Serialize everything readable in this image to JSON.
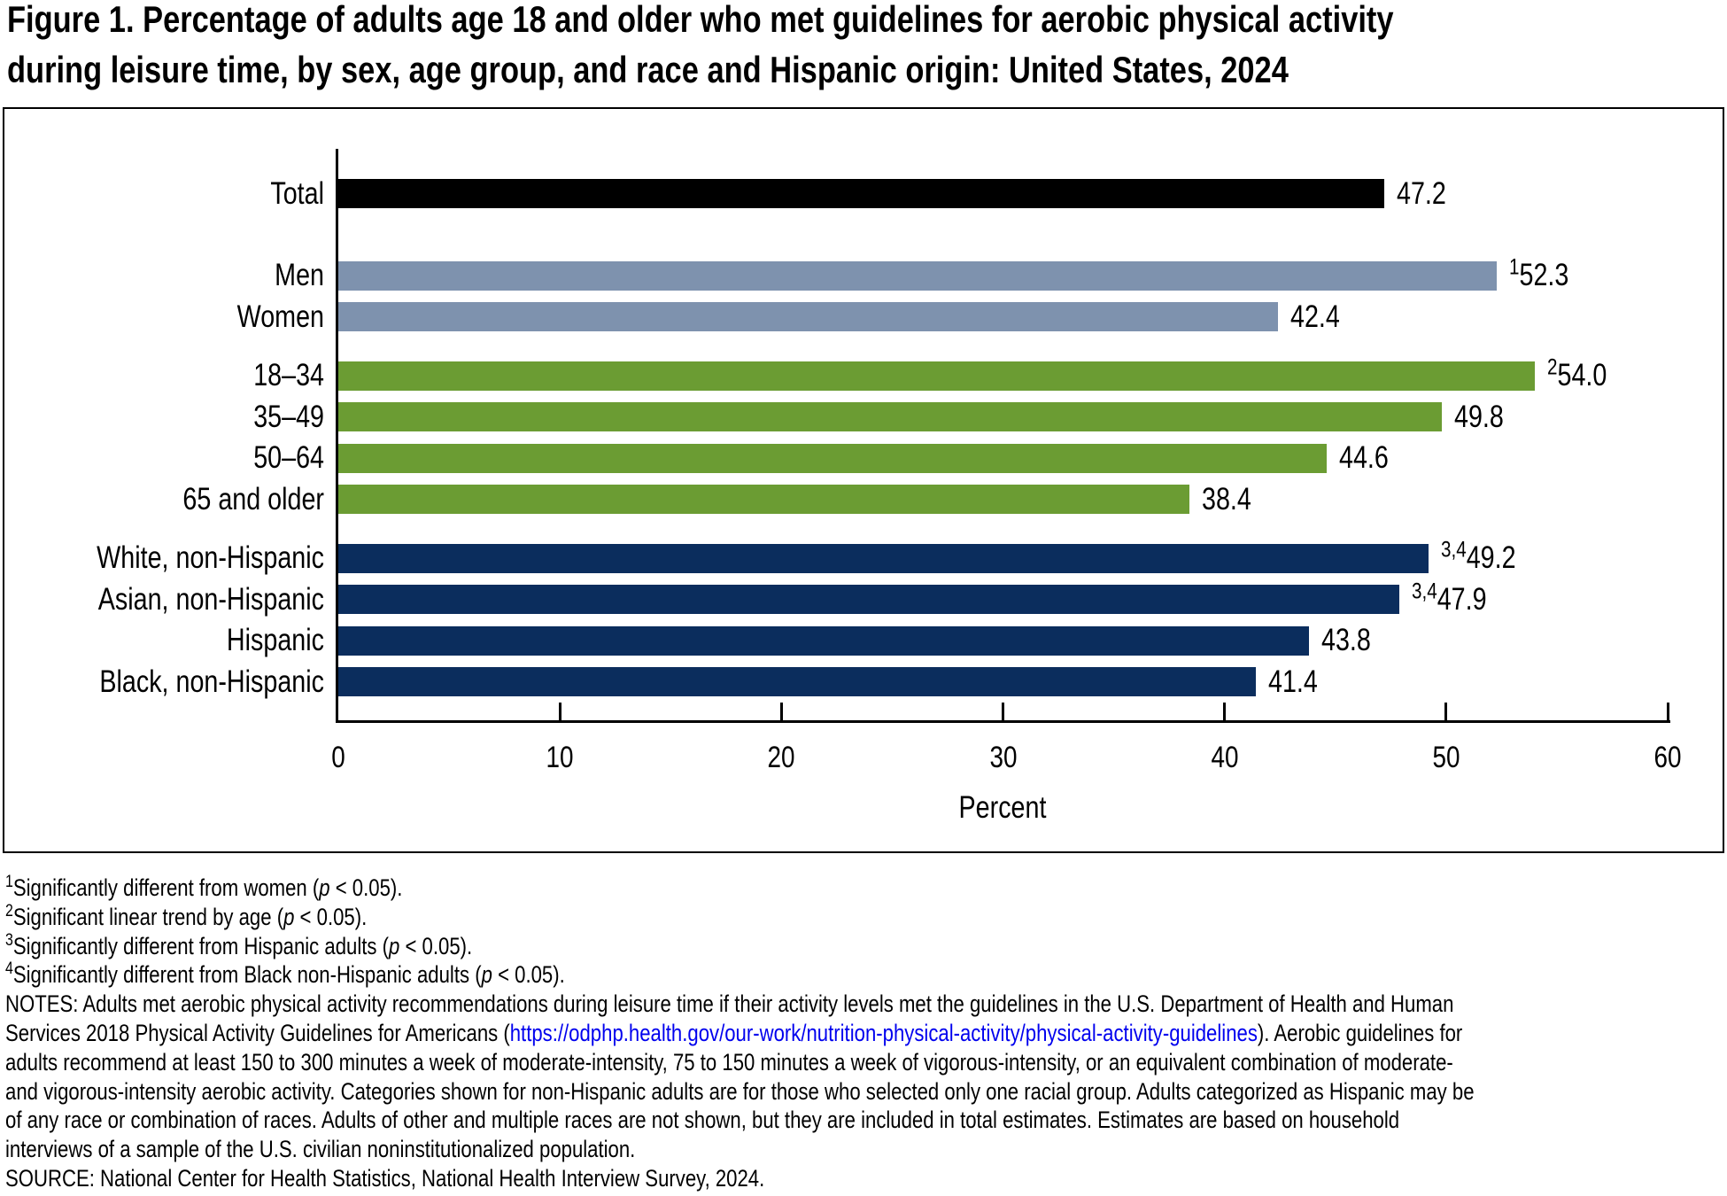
{
  "title": {
    "line1": "Figure 1. Percentage of adults age 18 and older who met guidelines for aerobic physical activity",
    "line2": "during leisure time, by sex, age group, and race and Hispanic origin: United States, 2024"
  },
  "chart_data": {
    "type": "bar",
    "orientation": "horizontal",
    "xlabel": "Percent",
    "xlim": [
      0,
      60
    ],
    "xticks": [
      0,
      10,
      20,
      30,
      40,
      50,
      60
    ],
    "grid": false,
    "categories": [
      "Total",
      "Men",
      "Women",
      "18–34",
      "35–49",
      "50–64",
      "65 and older",
      "White, non-Hispanic",
      "Asian, non-Hispanic",
      "Hispanic",
      "Black, non-Hispanic"
    ],
    "values": [
      47.2,
      52.3,
      42.4,
      54.0,
      49.8,
      44.6,
      38.4,
      49.2,
      47.9,
      43.8,
      41.4
    ],
    "value_labels": [
      "47.2",
      "52.3",
      "42.4",
      "54.0",
      "49.8",
      "44.6",
      "38.4",
      "49.2",
      "47.9",
      "43.8",
      "41.4"
    ],
    "superscripts": [
      "",
      "1",
      "",
      "2",
      "",
      "",
      "",
      "3,4",
      "3,4",
      "",
      ""
    ],
    "groups": [
      "total",
      "sex",
      "sex",
      "age",
      "age",
      "age",
      "age",
      "race",
      "race",
      "race",
      "race"
    ],
    "group_colors": {
      "total": "#000000",
      "sex": "#7E92AE",
      "age": "#6B9C33",
      "race": "#0B2D5D"
    }
  },
  "footnotes": [
    {
      "marker": "1",
      "text": "Significantly different from women (",
      "italic": "p",
      "text_after": " < 0.05)."
    },
    {
      "marker": "2",
      "text": "Significant linear trend by age (",
      "italic": "p",
      "text_after": " < 0.05)."
    },
    {
      "marker": "3",
      "text": "Significantly different from Hispanic adults (",
      "italic": "p",
      "text_after": " < 0.05)."
    },
    {
      "marker": "4",
      "text": "Significantly different from Black non-Hispanic adults (",
      "italic": "p",
      "text_after": " < 0.05)."
    }
  ],
  "notes": {
    "line1": "NOTES: Adults met aerobic physical activity recommendations during leisure time if their activity levels met the guidelines in the U.S. Department of Health and Human",
    "line2_pre": "Services 2018 Physical Activity Guidelines for Americans (",
    "link": "https://odphp.health.gov/our-work/nutrition-physical-activity/physical-activity-guidelines",
    "line2_post": "). Aerobic guidelines for",
    "line3": "adults recommend at least 150 to 300 minutes a week of moderate-intensity, 75 to 150 minutes a week of vigorous-intensity, or an equivalent combination of moderate-",
    "line4": "and vigorous-intensity aerobic activity. Categories shown for non-Hispanic adults are for those who selected only one racial group. Adults categorized as Hispanic may be",
    "line5": "of any race or combination of races. Adults of other and multiple races are not shown, but they are included in total estimates. Estimates are based on household",
    "line6": "interviews of a sample of the U.S. civilian noninstitutionalized population."
  },
  "source": "SOURCE: National Center for Health Statistics, National Health Interview Survey, 2024."
}
